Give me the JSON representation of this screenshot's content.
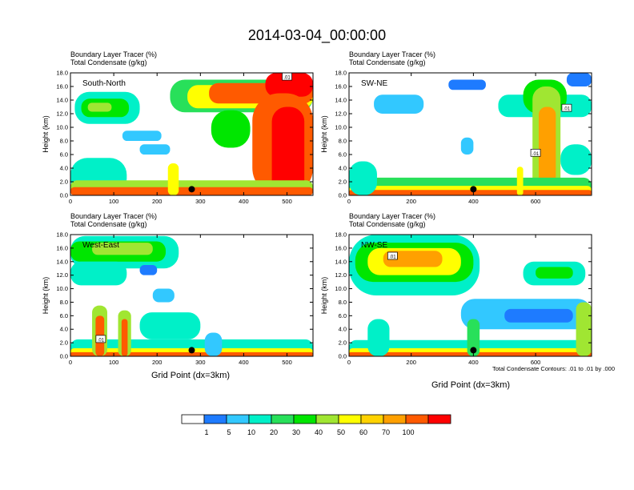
{
  "title": "2014-03-04_00:00:00",
  "panel_header": {
    "line1": "Boundary Layer Tracer   (%)",
    "line2": "Total Condensate   (g/kg)"
  },
  "axis": {
    "ylabel": "Height (km)",
    "xlabel": "Grid Point (dx=3km)"
  },
  "footnote": "Total Condensate Contours: .01 to .01 by .000",
  "colorbar": {
    "colors": [
      "#ffffff",
      "#1e7bff",
      "#32c8ff",
      "#00f0c8",
      "#28e05a",
      "#00e600",
      "#a0e632",
      "#ffff00",
      "#ffd200",
      "#ffa000",
      "#ff5a00",
      "#ff0000"
    ],
    "labels": [
      "1",
      "5",
      "10",
      "20",
      "30",
      "40",
      "50",
      "60",
      "70",
      "100"
    ]
  },
  "chart_data": [
    {
      "type": "heatmap",
      "name": "South-North",
      "ylim": [
        0,
        18
      ],
      "yticks": [
        "0.0",
        "2.0",
        "4.0",
        "6.0",
        "8.0",
        "10.0",
        "12.0",
        "14.0",
        "16.0",
        "18.0"
      ],
      "xlim": [
        0,
        560
      ],
      "xticks": [
        "0",
        "100",
        "200",
        "300",
        "400",
        "500"
      ],
      "xtick_values": [
        0,
        100,
        200,
        300,
        400,
        500
      ],
      "marker_x": 280,
      "contour_labels": [
        {
          "text": ".01",
          "x": 500,
          "y": 17.4
        }
      ],
      "blobs": [
        {
          "x0": 10,
          "x1": 160,
          "y0": 10.5,
          "y1": 15.2,
          "level": 3
        },
        {
          "x0": 25,
          "x1": 135,
          "y0": 11.5,
          "y1": 14.2,
          "level": 5
        },
        {
          "x0": 40,
          "x1": 95,
          "y0": 12.3,
          "y1": 13.6,
          "level": 6
        },
        {
          "x0": 230,
          "x1": 560,
          "y0": 12.2,
          "y1": 17.0,
          "level": 4
        },
        {
          "x0": 270,
          "x1": 560,
          "y0": 12.8,
          "y1": 16.2,
          "level": 7
        },
        {
          "x0": 320,
          "x1": 560,
          "y0": 13.5,
          "y1": 16.5,
          "level": 10
        },
        {
          "x0": 450,
          "x1": 560,
          "y0": 14.5,
          "y1": 18.0,
          "level": 11
        },
        {
          "x0": 420,
          "x1": 560,
          "y0": 0.0,
          "y1": 15.0,
          "level": 10
        },
        {
          "x0": 465,
          "x1": 540,
          "y0": 0.0,
          "y1": 13.0,
          "level": 11
        },
        {
          "x0": 325,
          "x1": 415,
          "y0": 7.0,
          "y1": 12.5,
          "level": 5
        },
        {
          "x0": 0,
          "x1": 130,
          "y0": 0.0,
          "y1": 5.5,
          "level": 3
        },
        {
          "x0": 0,
          "x1": 560,
          "y0": 0.0,
          "y1": 2.2,
          "level": 6
        },
        {
          "x0": 0,
          "x1": 560,
          "y0": 0.0,
          "y1": 1.2,
          "level": 10
        },
        {
          "x0": 225,
          "x1": 250,
          "y0": 0.0,
          "y1": 4.7,
          "level": 7
        },
        {
          "x0": 120,
          "x1": 210,
          "y0": 8.0,
          "y1": 9.5,
          "level": 2
        },
        {
          "x0": 160,
          "x1": 230,
          "y0": 6.0,
          "y1": 7.5,
          "level": 2
        }
      ]
    },
    {
      "type": "heatmap",
      "name": "SW-NE",
      "ylim": [
        0,
        18
      ],
      "yticks": [
        "0.0",
        "2.0",
        "4.0",
        "6.0",
        "8.0",
        "10.0",
        "12.0",
        "14.0",
        "16.0",
        "18.0"
      ],
      "xlim": [
        0,
        780
      ],
      "xticks": [
        "0",
        "200",
        "400",
        "600"
      ],
      "xtick_values": [
        0,
        200,
        400,
        600
      ],
      "marker_x": 400,
      "contour_labels": [
        {
          "text": ".01",
          "x": 700,
          "y": 12.8
        },
        {
          "text": ".01",
          "x": 600,
          "y": 6.2
        }
      ],
      "blobs": [
        {
          "x0": 80,
          "x1": 240,
          "y0": 12.0,
          "y1": 14.8,
          "level": 2
        },
        {
          "x0": 320,
          "x1": 440,
          "y0": 15.5,
          "y1": 17.0,
          "level": 1
        },
        {
          "x0": 480,
          "x1": 780,
          "y0": 11.5,
          "y1": 14.8,
          "level": 3
        },
        {
          "x0": 560,
          "x1": 700,
          "y0": 12.0,
          "y1": 17.0,
          "level": 5
        },
        {
          "x0": 590,
          "x1": 680,
          "y0": 0.0,
          "y1": 16.0,
          "level": 6
        },
        {
          "x0": 610,
          "x1": 665,
          "y0": 0.0,
          "y1": 13.0,
          "level": 9
        },
        {
          "x0": 700,
          "x1": 780,
          "y0": 16.0,
          "y1": 18.0,
          "level": 1
        },
        {
          "x0": 0,
          "x1": 780,
          "y0": 0.0,
          "y1": 2.6,
          "level": 4
        },
        {
          "x0": 0,
          "x1": 780,
          "y0": 0.0,
          "y1": 1.4,
          "level": 7
        },
        {
          "x0": 0,
          "x1": 780,
          "y0": 0.0,
          "y1": 0.8,
          "level": 10
        },
        {
          "x0": 0,
          "x1": 90,
          "y0": 0.0,
          "y1": 5.0,
          "level": 3
        },
        {
          "x0": 540,
          "x1": 560,
          "y0": 0.0,
          "y1": 4.2,
          "level": 7
        },
        {
          "x0": 680,
          "x1": 780,
          "y0": 3.0,
          "y1": 7.5,
          "level": 3
        },
        {
          "x0": 360,
          "x1": 400,
          "y0": 6.0,
          "y1": 8.5,
          "level": 2
        }
      ]
    },
    {
      "type": "heatmap",
      "name": "West-East",
      "ylim": [
        0,
        18
      ],
      "yticks": [
        "0.0",
        "2.0",
        "4.0",
        "6.0",
        "8.0",
        "10.0",
        "12.0",
        "14.0",
        "16.0",
        "18.0"
      ],
      "xlim": [
        0,
        560
      ],
      "xticks": [
        "0",
        "100",
        "200",
        "300",
        "400",
        "500"
      ],
      "xtick_values": [
        0,
        100,
        200,
        300,
        400,
        500
      ],
      "marker_x": 280,
      "contour_labels": [
        {
          "text": ".01",
          "x": 70,
          "y": 2.5
        }
      ],
      "blobs": [
        {
          "x0": 0,
          "x1": 250,
          "y0": 13.0,
          "y1": 17.8,
          "level": 3
        },
        {
          "x0": 0,
          "x1": 220,
          "y0": 14.0,
          "y1": 17.0,
          "level": 5
        },
        {
          "x0": 50,
          "x1": 190,
          "y0": 15.0,
          "y1": 16.8,
          "level": 6
        },
        {
          "x0": 0,
          "x1": 130,
          "y0": 10.5,
          "y1": 14.0,
          "level": 3
        },
        {
          "x0": 0,
          "x1": 560,
          "y0": 0.0,
          "y1": 2.5,
          "level": 3
        },
        {
          "x0": 0,
          "x1": 560,
          "y0": 0.0,
          "y1": 1.2,
          "level": 7
        },
        {
          "x0": 0,
          "x1": 560,
          "y0": 0.0,
          "y1": 0.6,
          "level": 10
        },
        {
          "x0": 50,
          "x1": 85,
          "y0": 0.0,
          "y1": 7.5,
          "level": 6
        },
        {
          "x0": 58,
          "x1": 78,
          "y0": 0.0,
          "y1": 6.0,
          "level": 10
        },
        {
          "x0": 110,
          "x1": 140,
          "y0": 0.0,
          "y1": 6.8,
          "level": 6
        },
        {
          "x0": 118,
          "x1": 132,
          "y0": 0.0,
          "y1": 5.5,
          "level": 10
        },
        {
          "x0": 160,
          "x1": 300,
          "y0": 2.5,
          "y1": 6.5,
          "level": 3
        },
        {
          "x0": 190,
          "x1": 240,
          "y0": 8.0,
          "y1": 10.0,
          "level": 2
        },
        {
          "x0": 310,
          "x1": 350,
          "y0": 0.0,
          "y1": 3.5,
          "level": 2
        },
        {
          "x0": 160,
          "x1": 200,
          "y0": 12.0,
          "y1": 13.5,
          "level": 1
        }
      ]
    },
    {
      "type": "heatmap",
      "name": "NW-SE",
      "ylim": [
        0,
        18
      ],
      "yticks": [
        "0.0",
        "2.0",
        "4.0",
        "6.0",
        "8.0",
        "10.0",
        "12.0",
        "14.0",
        "16.0",
        "18.0"
      ],
      "xlim": [
        0,
        780
      ],
      "xticks": [
        "0",
        "200",
        "400",
        "600"
      ],
      "xtick_values": [
        0,
        200,
        400,
        600
      ],
      "marker_x": 400,
      "contour_labels": [
        {
          "text": ".01",
          "x": 140,
          "y": 14.8
        }
      ],
      "blobs": [
        {
          "x0": 0,
          "x1": 420,
          "y0": 9.0,
          "y1": 18.0,
          "level": 3
        },
        {
          "x0": 20,
          "x1": 400,
          "y0": 11.0,
          "y1": 16.8,
          "level": 5
        },
        {
          "x0": 60,
          "x1": 360,
          "y0": 12.0,
          "y1": 16.0,
          "level": 7
        },
        {
          "x0": 110,
          "x1": 300,
          "y0": 13.2,
          "y1": 15.6,
          "level": 9
        },
        {
          "x0": 560,
          "x1": 760,
          "y0": 10.5,
          "y1": 14.0,
          "level": 3
        },
        {
          "x0": 600,
          "x1": 720,
          "y0": 11.5,
          "y1": 13.2,
          "level": 5
        },
        {
          "x0": 360,
          "x1": 780,
          "y0": 4.0,
          "y1": 8.5,
          "level": 2
        },
        {
          "x0": 500,
          "x1": 720,
          "y0": 5.0,
          "y1": 7.0,
          "level": 1
        },
        {
          "x0": 0,
          "x1": 780,
          "y0": 0.0,
          "y1": 2.4,
          "level": 3
        },
        {
          "x0": 0,
          "x1": 780,
          "y0": 0.0,
          "y1": 1.2,
          "level": 7
        },
        {
          "x0": 0,
          "x1": 780,
          "y0": 0.0,
          "y1": 0.6,
          "level": 10
        },
        {
          "x0": 60,
          "x1": 130,
          "y0": 0.0,
          "y1": 5.5,
          "level": 3
        },
        {
          "x0": 380,
          "x1": 420,
          "y0": 0.0,
          "y1": 5.5,
          "level": 4
        },
        {
          "x0": 730,
          "x1": 780,
          "y0": 0.0,
          "y1": 8.0,
          "level": 6
        }
      ]
    }
  ]
}
